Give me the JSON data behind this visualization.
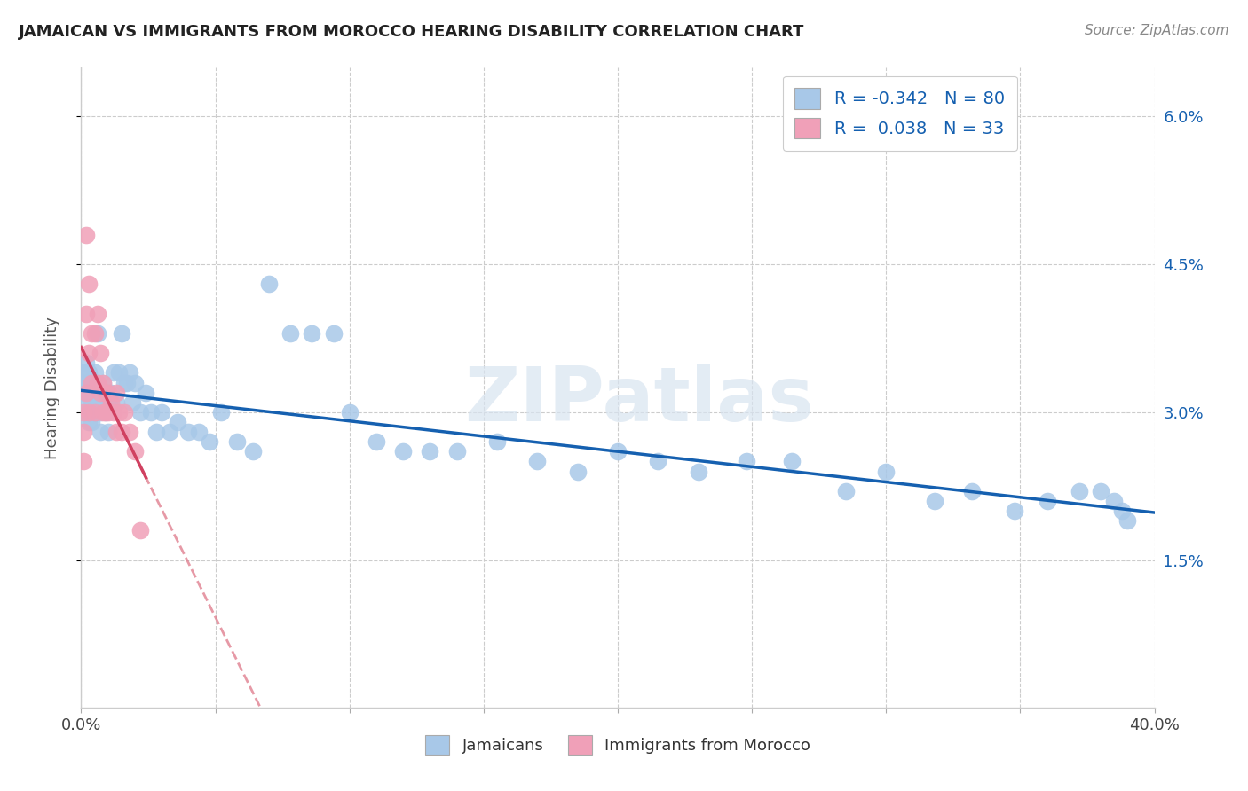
{
  "title": "JAMAICAN VS IMMIGRANTS FROM MOROCCO HEARING DISABILITY CORRELATION CHART",
  "source": "Source: ZipAtlas.com",
  "ylabel": "Hearing Disability",
  "xlim": [
    0.0,
    0.4
  ],
  "ylim": [
    0.0,
    0.065
  ],
  "x_ticks": [
    0.0,
    0.05,
    0.1,
    0.15,
    0.2,
    0.25,
    0.3,
    0.35,
    0.4
  ],
  "x_tick_labels": [
    "0.0%",
    "",
    "",
    "",
    "",
    "",
    "",
    "",
    "40.0%"
  ],
  "y_ticks_right": [
    0.015,
    0.03,
    0.045,
    0.06
  ],
  "y_tick_labels_right": [
    "1.5%",
    "3.0%",
    "4.5%",
    "6.0%"
  ],
  "legend_R1": "-0.342",
  "legend_N1": "80",
  "legend_R2": "0.038",
  "legend_N2": "33",
  "blue_scatter_color": "#a8c8e8",
  "pink_scatter_color": "#f0a0b8",
  "blue_line_color": "#1560b0",
  "pink_line_color": "#d04060",
  "pink_dash_color": "#e08090",
  "watermark": "ZIPatlas",
  "jamaicans_label": "Jamaicans",
  "morocco_label": "Immigrants from Morocco",
  "title_fontsize": 13,
  "axis_fontsize": 13,
  "legend_fontsize": 14,
  "blue_x": [
    0.001,
    0.001,
    0.001,
    0.002,
    0.002,
    0.002,
    0.002,
    0.003,
    0.003,
    0.003,
    0.003,
    0.004,
    0.004,
    0.004,
    0.005,
    0.005,
    0.005,
    0.006,
    0.006,
    0.006,
    0.007,
    0.007,
    0.007,
    0.008,
    0.008,
    0.009,
    0.009,
    0.01,
    0.01,
    0.011,
    0.012,
    0.013,
    0.014,
    0.015,
    0.016,
    0.017,
    0.018,
    0.019,
    0.02,
    0.022,
    0.024,
    0.026,
    0.028,
    0.03,
    0.033,
    0.036,
    0.04,
    0.044,
    0.048,
    0.052,
    0.058,
    0.064,
    0.07,
    0.078,
    0.086,
    0.094,
    0.1,
    0.11,
    0.12,
    0.13,
    0.14,
    0.155,
    0.17,
    0.185,
    0.2,
    0.215,
    0.23,
    0.248,
    0.265,
    0.285,
    0.3,
    0.318,
    0.332,
    0.348,
    0.36,
    0.372,
    0.38,
    0.385,
    0.388,
    0.39
  ],
  "blue_y": [
    0.034,
    0.033,
    0.032,
    0.035,
    0.033,
    0.031,
    0.03,
    0.034,
    0.032,
    0.03,
    0.029,
    0.033,
    0.031,
    0.029,
    0.034,
    0.032,
    0.03,
    0.033,
    0.031,
    0.038,
    0.032,
    0.03,
    0.028,
    0.033,
    0.031,
    0.032,
    0.03,
    0.031,
    0.028,
    0.032,
    0.034,
    0.031,
    0.034,
    0.038,
    0.033,
    0.033,
    0.034,
    0.031,
    0.033,
    0.03,
    0.032,
    0.03,
    0.028,
    0.03,
    0.028,
    0.029,
    0.028,
    0.028,
    0.027,
    0.03,
    0.027,
    0.026,
    0.043,
    0.038,
    0.038,
    0.038,
    0.03,
    0.027,
    0.026,
    0.026,
    0.026,
    0.027,
    0.025,
    0.024,
    0.026,
    0.025,
    0.024,
    0.025,
    0.025,
    0.022,
    0.024,
    0.021,
    0.022,
    0.02,
    0.021,
    0.022,
    0.022,
    0.021,
    0.02,
    0.019
  ],
  "pink_x": [
    0.001,
    0.001,
    0.001,
    0.002,
    0.002,
    0.002,
    0.003,
    0.003,
    0.003,
    0.004,
    0.004,
    0.005,
    0.005,
    0.006,
    0.006,
    0.007,
    0.007,
    0.008,
    0.008,
    0.009,
    0.009,
    0.01,
    0.01,
    0.011,
    0.012,
    0.013,
    0.013,
    0.014,
    0.015,
    0.016,
    0.018,
    0.02,
    0.022
  ],
  "pink_y": [
    0.03,
    0.028,
    0.025,
    0.048,
    0.04,
    0.032,
    0.043,
    0.036,
    0.03,
    0.038,
    0.033,
    0.038,
    0.03,
    0.04,
    0.033,
    0.036,
    0.032,
    0.033,
    0.03,
    0.032,
    0.03,
    0.032,
    0.03,
    0.031,
    0.03,
    0.032,
    0.028,
    0.03,
    0.028,
    0.03,
    0.028,
    0.026,
    0.018
  ]
}
